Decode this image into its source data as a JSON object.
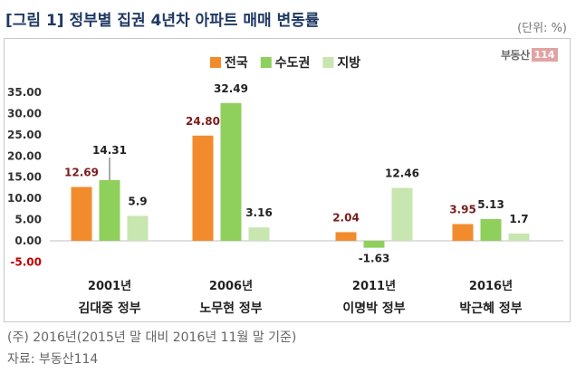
{
  "title": "[그림 1] 정부별 집권 4년차 아파트 매매 변동률",
  "unit_label": "(단위: %)",
  "logo": {
    "text": "부동산",
    "number": "114"
  },
  "chart_data": {
    "type": "bar",
    "categories": [
      "2001년",
      "2006년",
      "2011년",
      "2016년"
    ],
    "category_sublabels": [
      "김대중 정부",
      "노무현 정부",
      "이명박 정부",
      "박근혜 정부"
    ],
    "series": [
      {
        "name": "전국",
        "color": "#f28b2c",
        "values": [
          12.69,
          24.8,
          2.04,
          3.95
        ],
        "labels": [
          "12.69",
          "24.80",
          "2.04",
          "3.95"
        ],
        "label_color": "#7b1c1c"
      },
      {
        "name": "수도권",
        "color": "#8fcf5c",
        "values": [
          14.31,
          32.49,
          -1.63,
          5.13
        ],
        "labels": [
          "14.31",
          "32.49",
          "-1.63",
          "5.13"
        ],
        "label_color": "#222222"
      },
      {
        "name": "지방",
        "color": "#c7e6b0",
        "values": [
          5.9,
          3.16,
          12.46,
          1.7
        ],
        "labels": [
          "5.9",
          "3.16",
          "12.46",
          "1.7"
        ],
        "label_color": "#222222"
      }
    ],
    "yticks": [
      "35.00",
      "30.00",
      "25.00",
      "20.00",
      "15.00",
      "10.00",
      "5.00",
      "0.00",
      "-5.00"
    ],
    "ylim": [
      -5,
      35
    ],
    "legend_position": "top-center",
    "grid": false
  },
  "footnotes": [
    "(주) 2016년(2015년 말 대비 2016년 11월 말 기준)",
    "자료: 부동산114"
  ]
}
